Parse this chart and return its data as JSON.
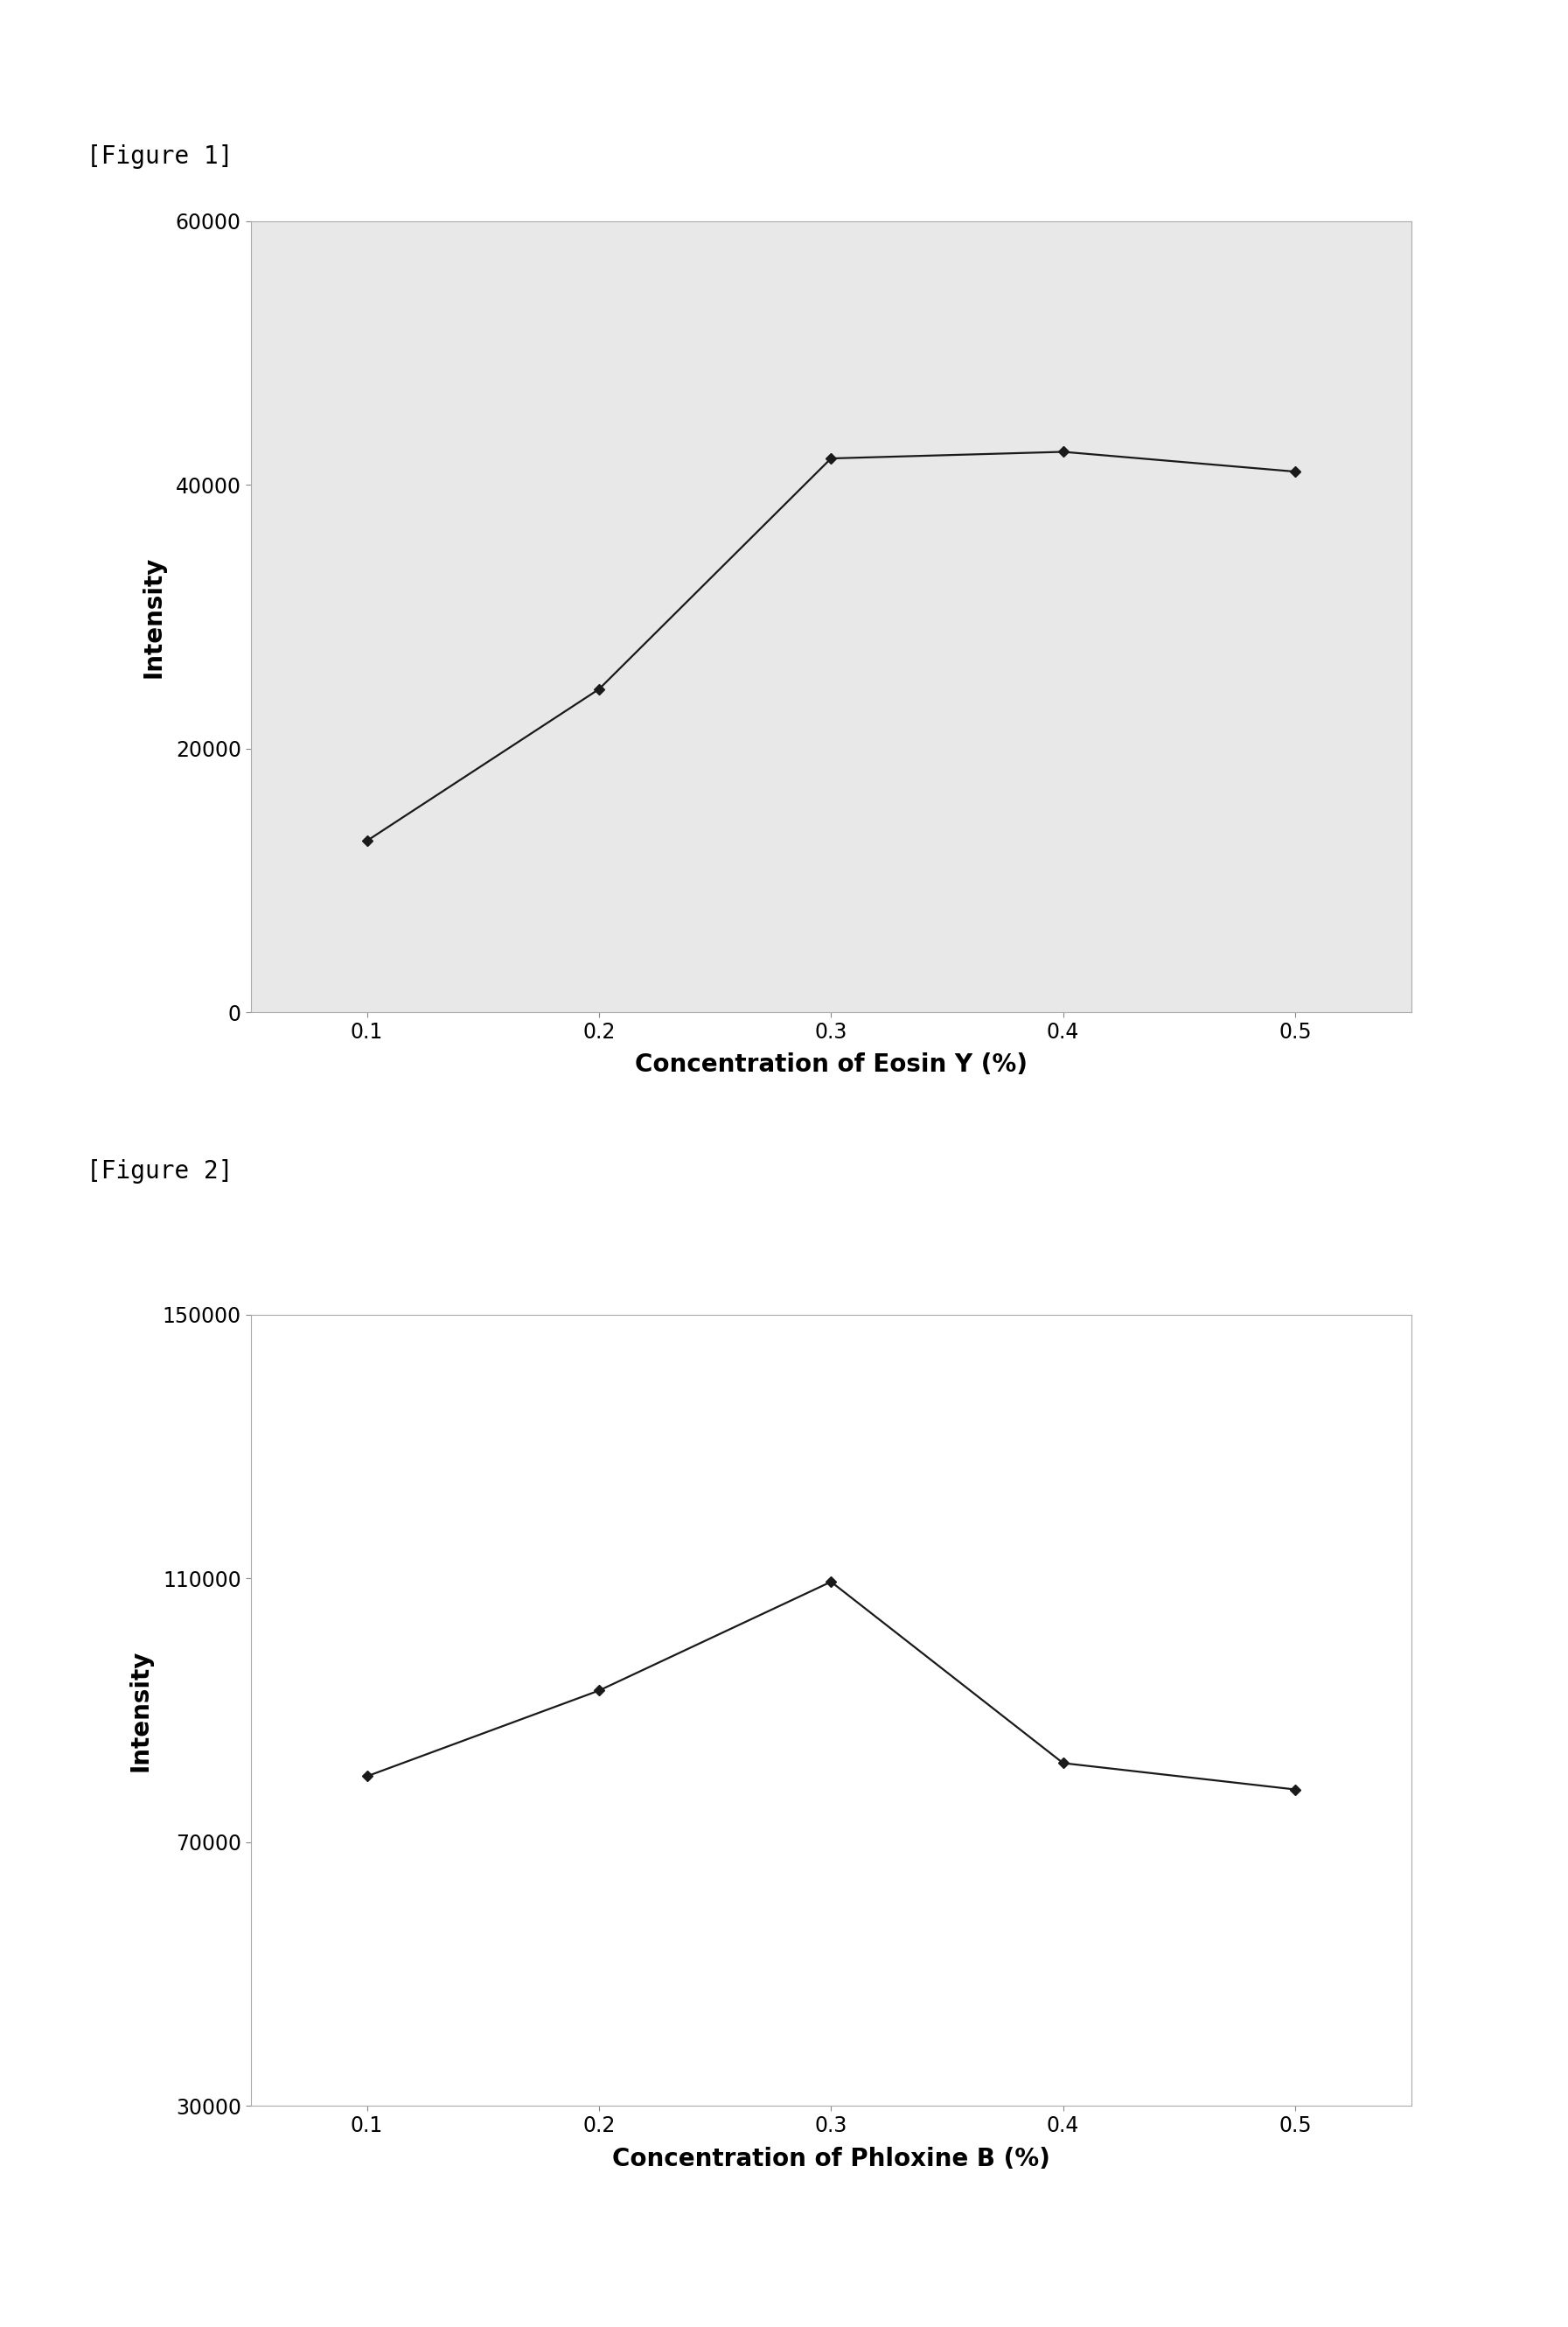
{
  "fig1": {
    "title": "[Figure 1]",
    "x": [
      0.1,
      0.2,
      0.3,
      0.4,
      0.5
    ],
    "y": [
      13000,
      24500,
      42000,
      42500,
      41000
    ],
    "xlabel": "Concentration of Eosin Y (%)",
    "ylabel": "Intensity",
    "xlim": [
      0.05,
      0.55
    ],
    "ylim": [
      0,
      60000
    ],
    "yticks": [
      0,
      20000,
      40000,
      60000
    ],
    "xticks": [
      0.1,
      0.2,
      0.3,
      0.4,
      0.5
    ],
    "xtick_labels": [
      "0.1",
      "0.2",
      "0.3",
      "0.4",
      "0.5"
    ],
    "bg_color": "#e8e8e8"
  },
  "fig2": {
    "title": "[Figure 2]",
    "x": [
      0.1,
      0.2,
      0.3,
      0.4,
      0.5
    ],
    "y": [
      80000,
      93000,
      109500,
      82000,
      78000
    ],
    "xlabel": "Concentration of Phloxine B (%)",
    "ylabel": "Intensity",
    "xlim": [
      0.05,
      0.55
    ],
    "ylim": [
      30000,
      150000
    ],
    "yticks": [
      30000,
      70000,
      110000,
      150000
    ],
    "ytick_labels": [
      "30000",
      "70000",
      "110000",
      "150000"
    ],
    "xticks": [
      0.1,
      0.2,
      0.3,
      0.4,
      0.5
    ],
    "xtick_labels": [
      "0.1",
      "0.2",
      "0.3",
      "0.4",
      "0.5"
    ],
    "bg_color": "#ffffff"
  },
  "line_color": "#1a1a1a",
  "marker": "D",
  "marker_size": 6,
  "marker_color": "#1a1a1a",
  "line_width": 1.6,
  "spine_color": "#aaaaaa",
  "axis_label_fontsize": 20,
  "tick_fontsize": 17,
  "title_fontsize": 20,
  "title_font": "monospace",
  "page_bg": "#ffffff"
}
